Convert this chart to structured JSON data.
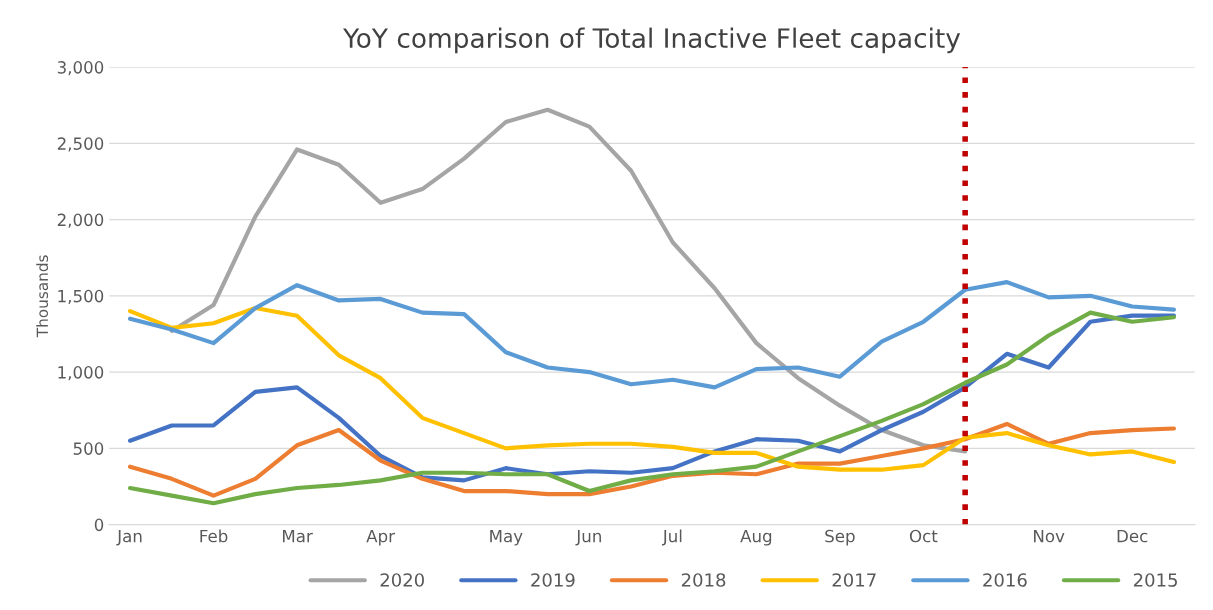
{
  "chart_data": {
    "type": "line",
    "title": "YoY comparison of Total Inactive Fleet capacity",
    "ylabel": "Thousands",
    "categories": [
      "Jan",
      null,
      "Feb",
      null,
      "Mar",
      null,
      "Apr",
      null,
      null,
      "May",
      null,
      "Jun",
      null,
      "Jul",
      null,
      "Aug",
      null,
      "Sep",
      null,
      "Oct",
      null,
      null,
      "Nov",
      null,
      "Dec",
      null
    ],
    "ylim": [
      0,
      3000
    ],
    "yticks": [
      {
        "value": 0,
        "label": "0"
      },
      {
        "value": 500,
        "label": "500"
      },
      {
        "value": 1000,
        "label": "1,000"
      },
      {
        "value": 1500,
        "label": "1,500"
      },
      {
        "value": 2000,
        "label": "2,000"
      },
      {
        "value": 2500,
        "label": "2,500"
      },
      {
        "value": 3000,
        "label": "3,000"
      }
    ],
    "series": [
      {
        "name": "2020",
        "color": "#a5a5a5",
        "values": [
          null,
          1270,
          1440,
          2020,
          2460,
          2360,
          2110,
          2200,
          2400,
          2640,
          2720,
          2610,
          2320,
          1850,
          1550,
          1190,
          960,
          780,
          620,
          520,
          480,
          null,
          null,
          null,
          null,
          null
        ]
      },
      {
        "name": "2019",
        "color": "#4472c4",
        "values": [
          550,
          650,
          650,
          870,
          900,
          700,
          450,
          310,
          290,
          370,
          330,
          350,
          340,
          370,
          480,
          560,
          550,
          480,
          620,
          740,
          900,
          1120,
          1030,
          1330,
          1370,
          1370
        ]
      },
      {
        "name": "2018",
        "color": "#ed7d31",
        "values": [
          380,
          300,
          190,
          300,
          520,
          620,
          420,
          300,
          220,
          220,
          200,
          200,
          250,
          320,
          340,
          330,
          400,
          400,
          450,
          500,
          560,
          660,
          530,
          600,
          620,
          630
        ]
      },
      {
        "name": "2017",
        "color": "#ffc000",
        "values": [
          1400,
          1290,
          1320,
          1420,
          1370,
          1110,
          960,
          700,
          600,
          500,
          520,
          530,
          530,
          510,
          470,
          470,
          380,
          360,
          360,
          390,
          570,
          600,
          520,
          460,
          480,
          410
        ]
      },
      {
        "name": "2016",
        "color": "#5b9bd5",
        "values": [
          1350,
          1280,
          1190,
          1420,
          1570,
          1470,
          1480,
          1390,
          1380,
          1130,
          1030,
          1000,
          920,
          950,
          900,
          1020,
          1030,
          970,
          1200,
          1330,
          1540,
          1590,
          1490,
          1500,
          1430,
          1410
        ]
      },
      {
        "name": "2015",
        "color": "#70ad47",
        "values": [
          240,
          190,
          140,
          200,
          240,
          260,
          290,
          340,
          340,
          330,
          330,
          220,
          290,
          330,
          350,
          380,
          480,
          580,
          680,
          790,
          930,
          1050,
          1240,
          1390,
          1330,
          1360
        ]
      }
    ],
    "grid": "y",
    "legend": "bottom",
    "marker": "none",
    "line_style": "solid"
  }
}
